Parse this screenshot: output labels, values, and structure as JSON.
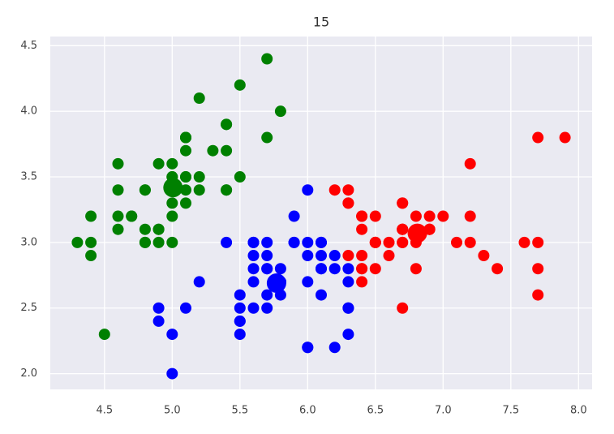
{
  "chart_data": {
    "type": "scatter",
    "title": "15",
    "xlim": [
      4.1,
      8.1
    ],
    "ylim": [
      1.88,
      4.57
    ],
    "xticks": [
      4.5,
      {
        "value": 5.0,
        "label": "5.0"
      },
      5.5,
      {
        "value": 6.0,
        "label": "6.0"
      },
      6.5,
      {
        "value": 7.0,
        "label": "7.0"
      },
      7.5,
      {
        "value": 8.0,
        "label": "8.0"
      }
    ],
    "yticks": [
      {
        "value": 2.0,
        "label": "2.0"
      },
      2.5,
      {
        "value": 3.0,
        "label": "3.0"
      },
      3.5,
      {
        "value": 4.0,
        "label": "4.0"
      },
      4.5
    ],
    "grid": true,
    "series": [
      {
        "color": "green",
        "x": [
          5.1,
          4.9,
          4.7,
          4.6,
          5.0,
          5.4,
          4.6,
          5.0,
          4.4,
          4.9,
          5.4,
          4.8,
          4.8,
          4.3,
          5.8,
          5.7,
          5.4,
          5.1,
          5.7,
          5.1,
          5.4,
          5.1,
          4.6,
          5.1,
          4.8,
          5.0,
          5.0,
          5.2,
          5.2,
          4.7,
          4.8,
          5.4,
          5.2,
          5.5,
          4.9,
          5.0,
          5.5,
          4.9,
          4.4,
          5.1,
          5.0,
          4.5,
          4.4,
          5.0,
          5.1,
          4.8,
          5.1,
          4.6,
          5.3,
          5.0
        ],
        "y": [
          3.5,
          3.0,
          3.2,
          3.1,
          3.6,
          3.9,
          3.4,
          3.4,
          2.9,
          3.1,
          3.7,
          3.4,
          3.0,
          3.0,
          4.0,
          4.4,
          3.9,
          3.5,
          3.8,
          3.8,
          3.4,
          3.7,
          3.6,
          3.3,
          3.4,
          3.0,
          3.4,
          3.5,
          3.4,
          3.2,
          3.1,
          3.4,
          4.1,
          4.2,
          3.1,
          3.2,
          3.5,
          3.6,
          3.0,
          3.4,
          3.5,
          2.3,
          3.2,
          3.5,
          3.8,
          3.0,
          3.8,
          3.2,
          3.7,
          3.3
        ]
      },
      {
        "color": "blue",
        "x": [
          5.5,
          5.7,
          4.9,
          5.2,
          5.0,
          5.9,
          6.0,
          6.1,
          5.6,
          5.6,
          5.8,
          6.2,
          5.6,
          5.9,
          6.1,
          6.3,
          6.1,
          6.0,
          5.7,
          5.5,
          5.5,
          5.8,
          6.0,
          5.4,
          6.0,
          6.3,
          5.6,
          5.5,
          5.5,
          6.1,
          5.8,
          5.0,
          5.6,
          5.7,
          5.7,
          6.2,
          5.1,
          5.7,
          5.8,
          4.9,
          5.7,
          5.8,
          6.0,
          5.6,
          6.3,
          6.2,
          6.1,
          6.3,
          6.1,
          6.0,
          5.8,
          6.3,
          5.9
        ],
        "y": [
          2.3,
          2.8,
          2.4,
          2.7,
          2.0,
          3.0,
          2.2,
          2.9,
          2.9,
          3.0,
          2.7,
          2.2,
          2.5,
          3.2,
          2.8,
          2.5,
          2.8,
          2.9,
          2.6,
          2.4,
          2.4,
          2.7,
          2.7,
          3.0,
          3.4,
          2.3,
          3.0,
          2.5,
          2.6,
          3.0,
          2.6,
          2.3,
          2.7,
          3.0,
          2.9,
          2.9,
          2.5,
          2.8,
          2.7,
          2.5,
          2.5,
          2.8,
          2.2,
          2.8,
          2.7,
          2.8,
          3.0,
          2.8,
          2.6,
          3.0,
          2.7,
          2.5,
          3.0
        ]
      },
      {
        "color": "red",
        "x": [
          7.0,
          6.4,
          6.9,
          6.5,
          6.3,
          6.6,
          6.7,
          6.4,
          6.6,
          6.8,
          6.7,
          6.7,
          6.3,
          7.1,
          6.3,
          6.5,
          7.6,
          7.3,
          6.7,
          7.2,
          6.5,
          6.4,
          6.8,
          6.4,
          6.5,
          7.7,
          7.7,
          6.9,
          7.7,
          6.7,
          7.2,
          6.4,
          7.2,
          7.4,
          7.9,
          6.4,
          7.7,
          6.3,
          6.4,
          6.9,
          6.7,
          6.9,
          6.8,
          6.7,
          6.7,
          6.5,
          6.2
        ],
        "y": [
          3.2,
          3.2,
          3.1,
          2.8,
          3.3,
          2.9,
          3.1,
          2.9,
          3.0,
          2.8,
          3.0,
          3.1,
          3.3,
          3.0,
          2.9,
          3.0,
          3.0,
          2.9,
          2.5,
          3.6,
          3.2,
          2.7,
          3.0,
          3.2,
          3.0,
          3.8,
          2.6,
          3.2,
          2.8,
          3.3,
          3.2,
          2.8,
          3.0,
          2.8,
          3.8,
          2.8,
          3.0,
          3.4,
          3.1,
          3.1,
          3.1,
          3.1,
          3.2,
          3.3,
          3.0,
          3.0,
          3.4
        ]
      }
    ],
    "centroids": {
      "x": [
        5.006,
        5.77,
        6.81
      ],
      "y": [
        3.418,
        2.69,
        3.07
      ],
      "colors": [
        "green",
        "blue",
        "red"
      ]
    }
  }
}
